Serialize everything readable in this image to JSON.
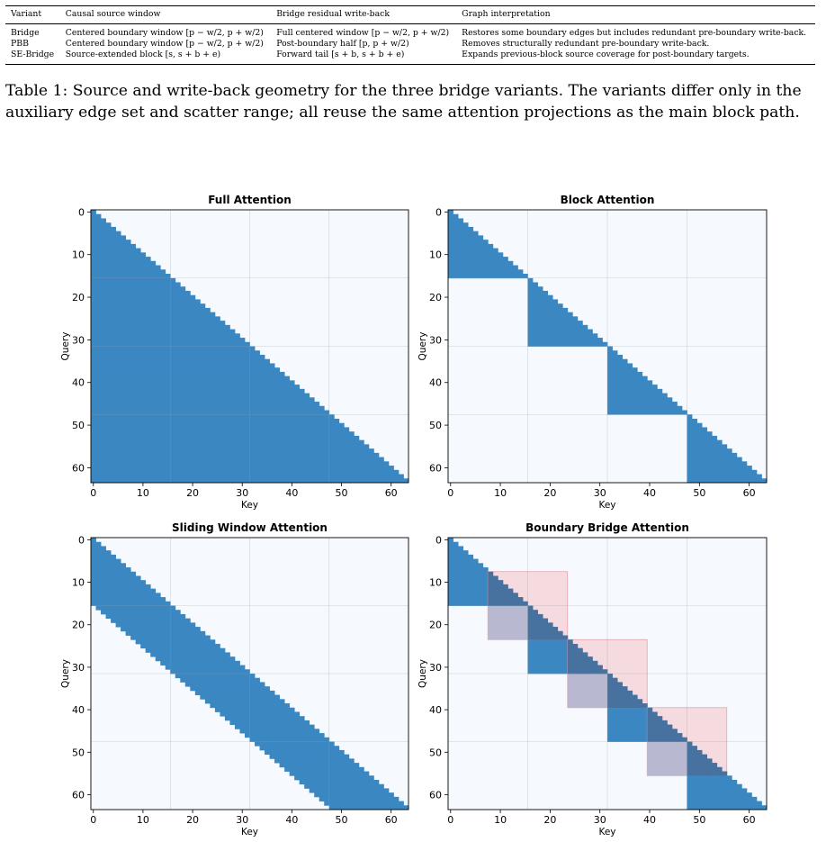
{
  "table": {
    "headers": [
      "Variant",
      "Causal source window",
      "Bridge residual write-back",
      "Graph interpretation"
    ],
    "rows": [
      [
        "Bridge",
        "Centered boundary window [p − w/2, p + w/2)",
        "Full centered window [p − w/2, p + w/2)",
        "Restores some boundary edges but includes redundant pre-boundary write-back."
      ],
      [
        "PBB",
        "Centered boundary window [p − w/2, p + w/2)",
        "Post-boundary half [p, p + w/2)",
        "Removes structurally redundant pre-boundary write-back."
      ],
      [
        "SE-Bridge",
        "Source-extended block [s, s + b + e)",
        "Forward tail [s + b, s + b + e)",
        "Expands previous-block source coverage for post-boundary targets."
      ]
    ]
  },
  "caption": "Table 1: Source and write-back geometry for the three bridge variants. The variants differ only in the auxiliary edge set and scatter range; all reuse the same attention projections as the main block path.",
  "colors": {
    "mask": "#3a87c2",
    "background": "#f6fafe",
    "bridge_write": "#f5c9d0",
    "bridge_write_edge": "#e6a3ad",
    "overlap_white": "#b8b9d0",
    "overlap_blue": "#47719f"
  },
  "chart_data": [
    {
      "type": "heatmap",
      "title": "Full Attention",
      "xlabel": "Key",
      "ylabel": "Query",
      "n": 64,
      "mask": "causal",
      "xticks": [
        0,
        10,
        20,
        30,
        40,
        50,
        60
      ],
      "yticks": [
        0,
        10,
        20,
        30,
        40,
        50,
        60
      ],
      "block_size": 16,
      "grid": true
    },
    {
      "type": "heatmap",
      "title": "Block Attention",
      "xlabel": "Key",
      "ylabel": "Query",
      "n": 64,
      "mask": "block-causal",
      "block_size": 16,
      "xticks": [
        0,
        10,
        20,
        30,
        40,
        50,
        60
      ],
      "yticks": [
        0,
        10,
        20,
        30,
        40,
        50,
        60
      ],
      "grid": true
    },
    {
      "type": "heatmap",
      "title": "Sliding Window Attention",
      "xlabel": "Key",
      "ylabel": "Query",
      "n": 64,
      "mask": "sliding-window",
      "window": 16,
      "block_size": 16,
      "xticks": [
        0,
        10,
        20,
        30,
        40,
        50,
        60
      ],
      "yticks": [
        0,
        10,
        20,
        30,
        40,
        50,
        60
      ],
      "grid": true
    },
    {
      "type": "heatmap",
      "title": "Boundary Bridge Attention",
      "xlabel": "Key",
      "ylabel": "Query",
      "n": 64,
      "mask": "block-causal-plus-bridge",
      "block_size": 16,
      "bridge_boundaries": [
        16,
        32,
        48
      ],
      "bridge_half_width": 8,
      "xticks": [
        0,
        10,
        20,
        30,
        40,
        50,
        60
      ],
      "yticks": [
        0,
        10,
        20,
        30,
        40,
        50,
        60
      ],
      "grid": true
    }
  ]
}
